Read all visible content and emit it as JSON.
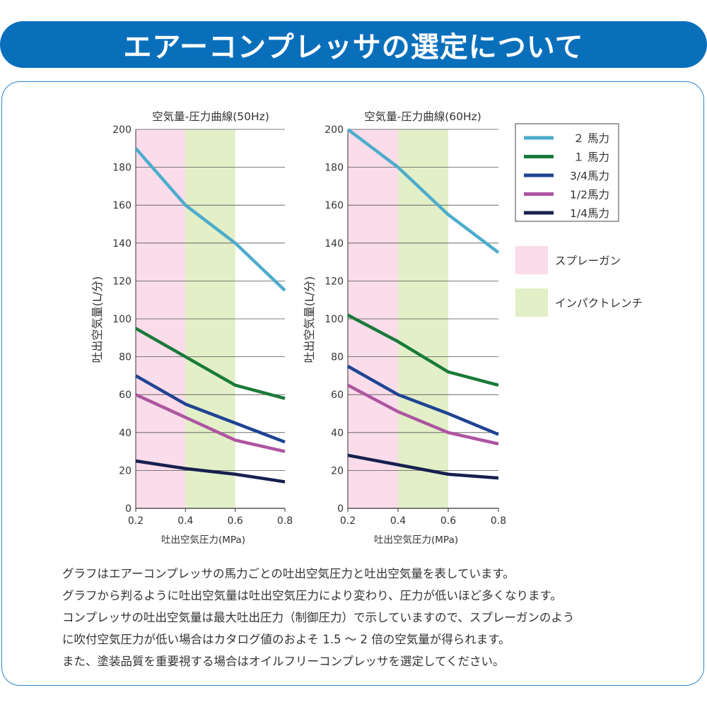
{
  "banner": {
    "title": "エアーコンプレッサの選定について"
  },
  "colors": {
    "banner": "#0a6fbb",
    "spray_band": "#fadcea",
    "impact_band": "#e3efc7",
    "grid": "#555555"
  },
  "x_axis_label": "吐出空気圧力(MPa)",
  "y_axis_label": "吐出空気量(L/分)",
  "legend": {
    "series": [
      {
        "label": "２ 馬力",
        "color": "#4daccc"
      },
      {
        "label": "１ 馬力",
        "color": "#1a7a3a"
      },
      {
        "label": "3/4馬力",
        "color": "#1f4393"
      },
      {
        "label": "1/2馬力",
        "color": "#ad55a1"
      },
      {
        "label": "1/4馬力",
        "color": "#17204f"
      }
    ],
    "bands": [
      {
        "label": "スプレーガン",
        "color": "#fadcea"
      },
      {
        "label": "インパクトレンチ",
        "color": "#e3efc7"
      }
    ]
  },
  "chart_data": [
    {
      "type": "line",
      "title": "空気量-圧力曲線(50Hz)",
      "xlabel": "吐出空気圧力(MPa)",
      "ylabel": "吐出空気量(L/分)",
      "x": [
        0.2,
        0.4,
        0.6,
        0.8
      ],
      "x_ticks": [
        "0.2",
        "0.4",
        "0.6",
        "0.8"
      ],
      "xlim": [
        0.2,
        0.8
      ],
      "ylim": [
        0,
        200
      ],
      "y_ticks": [
        0,
        20,
        40,
        60,
        80,
        100,
        120,
        140,
        160,
        180,
        200
      ],
      "bands": [
        {
          "label": "スプレーガン",
          "from": 0.2,
          "to": 0.4
        },
        {
          "label": "インパクトレンチ",
          "from": 0.4,
          "to": 0.6
        }
      ],
      "series": [
        {
          "name": "２ 馬力",
          "values": [
            190,
            160,
            140,
            115
          ]
        },
        {
          "name": "１ 馬力",
          "values": [
            95,
            80,
            65,
            58
          ]
        },
        {
          "name": "3/4馬力",
          "values": [
            70,
            55,
            45,
            35
          ]
        },
        {
          "name": "1/2馬力",
          "values": [
            60,
            48,
            36,
            30
          ]
        },
        {
          "name": "1/4馬力",
          "values": [
            25,
            21,
            18,
            14
          ]
        }
      ]
    },
    {
      "type": "line",
      "title": "空気量-圧力曲線(60Hz)",
      "xlabel": "吐出空気圧力(MPa)",
      "ylabel": "吐出空気量(L/分)",
      "x": [
        0.2,
        0.4,
        0.6,
        0.8
      ],
      "x_ticks": [
        "0.2",
        "0.4",
        "0.6",
        "0.8"
      ],
      "xlim": [
        0.2,
        0.8
      ],
      "ylim": [
        0,
        200
      ],
      "y_ticks": [
        0,
        20,
        40,
        60,
        80,
        100,
        120,
        140,
        160,
        180,
        200
      ],
      "bands": [
        {
          "label": "スプレーガン",
          "from": 0.2,
          "to": 0.4
        },
        {
          "label": "インパクトレンチ",
          "from": 0.4,
          "to": 0.6
        }
      ],
      "series": [
        {
          "name": "２ 馬力",
          "values": [
            200,
            180,
            155,
            135
          ]
        },
        {
          "name": "１ 馬力",
          "values": [
            102,
            88,
            72,
            65
          ]
        },
        {
          "name": "3/4馬力",
          "values": [
            75,
            60,
            50,
            39
          ]
        },
        {
          "name": "1/2馬力",
          "values": [
            65,
            51,
            40,
            34
          ]
        },
        {
          "name": "1/4馬力",
          "values": [
            28,
            23,
            18,
            16
          ]
        }
      ]
    }
  ],
  "description": {
    "lines": [
      "グラフはエアーコンプレッサの馬力ごとの吐出空気圧力と吐出空気量を表しています。",
      "グラフから判るように吐出空気量は吐出空気圧力により変わり、圧力が低いほど多くなります。",
      "コンプレッサの吐出空気量は最大吐出圧力（制御圧力）で示していますので、スプレーガンのよう",
      "に吹付空気圧力が低い場合はカタログ値のおよそ 1.5 ～ 2 倍の空気量が得られます。",
      "また、塗装品質を重要視する場合はオイルフリーコンプレッサを選定してください。"
    ]
  }
}
